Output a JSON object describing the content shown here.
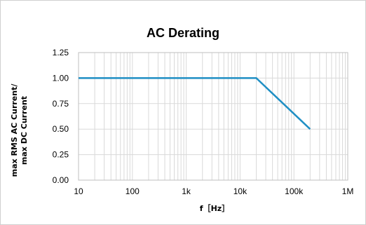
{
  "chart_data": {
    "type": "line",
    "title": "AC Derating",
    "xlabel": "f［Hz］",
    "ylabel_lines": [
      "max RMS AC Current/",
      "max DC Current"
    ],
    "x_scale": "log",
    "xlim": [
      10,
      1000000
    ],
    "ylim": [
      0,
      1.25
    ],
    "x_ticks": [
      {
        "value": 10,
        "label": "10"
      },
      {
        "value": 100,
        "label": "100"
      },
      {
        "value": 1000,
        "label": "1k"
      },
      {
        "value": 10000,
        "label": "10k"
      },
      {
        "value": 100000,
        "label": "100k"
      },
      {
        "value": 1000000,
        "label": "1M"
      }
    ],
    "y_ticks": [
      {
        "value": 0,
        "label": "0.00"
      },
      {
        "value": 0.25,
        "label": "0.25"
      },
      {
        "value": 0.5,
        "label": "0.50"
      },
      {
        "value": 0.75,
        "label": "0.75"
      },
      {
        "value": 1.0,
        "label": "1.00"
      },
      {
        "value": 1.25,
        "label": "1.25"
      }
    ],
    "grid": true,
    "legend": "none",
    "series": [
      {
        "color": "#1f8fc4",
        "x": [
          10,
          20000,
          200000
        ],
        "y": [
          1.0,
          1.0,
          0.5
        ]
      }
    ]
  }
}
